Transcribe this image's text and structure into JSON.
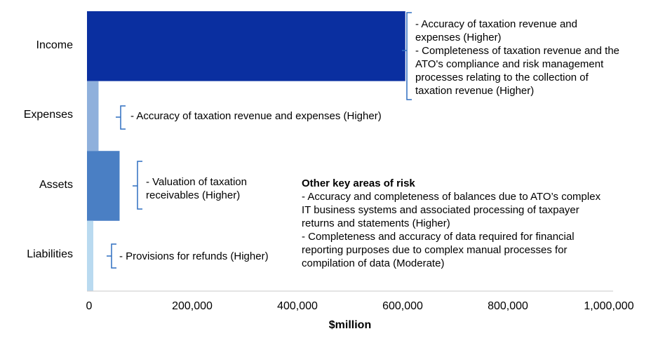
{
  "chart_data": {
    "type": "bar",
    "orientation": "horizontal",
    "categories": [
      "Income",
      "Expenses",
      "Assets",
      "Liabilities"
    ],
    "values": [
      605000,
      22000,
      62000,
      12000
    ],
    "colors": [
      "#0a2fa0",
      "#8fb0dc",
      "#4a7fc4",
      "#b9daf0"
    ],
    "xlabel": "$million",
    "xlim": [
      0,
      1000000
    ],
    "x_ticks": [
      "0",
      "200,000",
      "400,000",
      "600,000",
      "800,000",
      "1,000,000"
    ],
    "grid": false,
    "annotations": [
      [
        "-  Accuracy of taxation revenue and",
        "expenses (Higher)",
        "- Completeness of taxation revenue and the",
        "ATO's compliance and risk management",
        "processes relating to the collection of",
        "taxation revenue (Higher)"
      ],
      [
        "- Accuracy of taxation revenue and expenses (Higher)"
      ],
      [
        "- Valuation of taxation",
        "receivables (Higher)"
      ],
      [
        "- Provisions for refunds (Higher)"
      ]
    ]
  },
  "other_risks": {
    "heading": "Other key areas of risk",
    "lines": [
      "- Accuracy and completeness of balances due to ATO’s complex",
      "IT business systems and associated processing of taxpayer",
      "returns and statements (Higher)",
      "- Completeness and accuracy of data required for financial",
      "reporting purposes due to complex manual processes for",
      "compilation of data (Moderate)"
    ]
  }
}
